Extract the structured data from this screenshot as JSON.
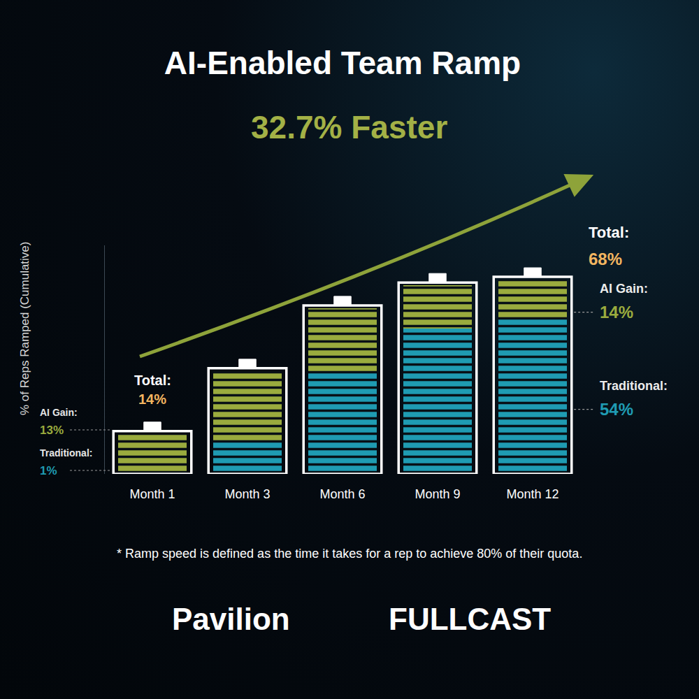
{
  "chart_data": {
    "type": "bar",
    "stacked": true,
    "title": "AI-Enabled Team Ramp",
    "subtitle": "32.7% Faster",
    "y_label": "% of Reps Ramped (Cumulative)",
    "categories": [
      "Month 1",
      "Month 3",
      "Month 6",
      "Month 9",
      "Month 12"
    ],
    "series": [
      {
        "name": "Traditional:",
        "color": "#1f9bb2",
        "values": [
          1,
          11,
          36,
          51,
          54
        ],
        "value_labels": [
          "1%",
          null,
          null,
          null,
          "54%"
        ]
      },
      {
        "name": "AI Gain:",
        "color": "#9aab3e",
        "values": [
          13,
          25,
          22,
          15,
          14
        ],
        "value_labels": [
          "13%",
          null,
          null,
          null,
          "14%"
        ]
      }
    ],
    "totals": {
      "label": "Total:",
      "color": "#f2b560",
      "values": [
        14,
        null,
        null,
        null,
        68
      ],
      "value_labels": [
        "14%",
        null,
        null,
        null,
        "68%"
      ]
    },
    "ylim": [
      0,
      80
    ],
    "tick_labels": "x",
    "grid": false,
    "footnote": "* Ramp speed is defined as the time it takes for a rep to achieve 80% of their quota.",
    "logos": [
      "Pavilion",
      "FULLCAST"
    ]
  }
}
